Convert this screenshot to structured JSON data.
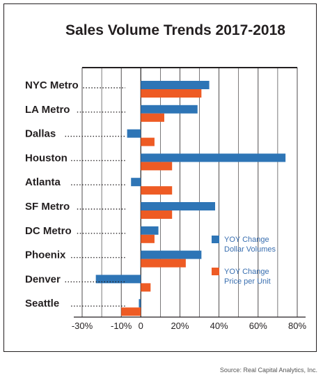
{
  "chart_data": {
    "type": "bar",
    "orientation": "horizontal",
    "title": "Sales Volume Trends 2017-2018",
    "categories": [
      "NYC Metro",
      "LA Metro",
      "Dallas",
      "Houston",
      "Atlanta",
      "SF Metro",
      "DC Metro",
      "Phoenix",
      "Denver",
      "Seattle"
    ],
    "series": [
      {
        "name": "YOY Change Dollar Volumes",
        "legend_lines": [
          "YOY Change",
          "Dollar Volumes"
        ],
        "color": "#2e75b6",
        "values": [
          35,
          29,
          -7,
          74,
          -5,
          38,
          9,
          31,
          -23,
          -1
        ]
      },
      {
        "name": "YOY Change Price per Unit",
        "legend_lines": [
          "YOY Change",
          "Price per Unit"
        ],
        "color": "#ee5b24",
        "values": [
          31,
          12,
          7,
          16,
          16,
          16,
          7,
          23,
          5,
          -10
        ]
      }
    ],
    "xlim": [
      -30,
      80
    ],
    "xticks": [
      -30,
      -10,
      0,
      20,
      40,
      60,
      80
    ],
    "xtick_labels": [
      "-30%",
      "-10%",
      "0",
      "20%",
      "40%",
      "60%",
      "80%"
    ],
    "grid": true,
    "legend_position": "right"
  },
  "source_text": "Source: Real Capital Analytics, Inc.",
  "colors": {
    "text": "#231f20",
    "grid": "#231f20",
    "legend_text": "#3a6fb0"
  }
}
